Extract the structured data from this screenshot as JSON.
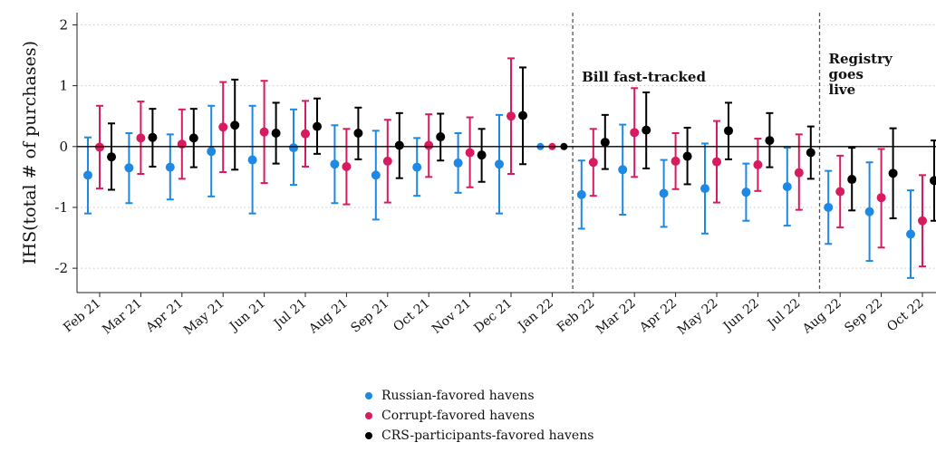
{
  "chart_data": {
    "type": "scatter",
    "ylabel": "IHS(total # of purchases)",
    "ylim": [
      -2.4,
      2.2
    ],
    "yticks": [
      -2,
      -1,
      0,
      1,
      2
    ],
    "yticklabels": [
      "-2",
      "-1",
      "0",
      "1",
      "2"
    ],
    "grid": true,
    "categories": [
      "Feb 21",
      "Mar 21",
      "Apr 21",
      "May 21",
      "Jun 21",
      "Jul 21",
      "Aug 21",
      "Sep 21",
      "Oct 21",
      "Nov 21",
      "Dec 21",
      "Jan 22",
      "Feb 22",
      "Mar 22",
      "Apr 22",
      "May 22",
      "Jun 22",
      "Jul 22",
      "Aug 22",
      "Sep 22",
      "Oct 22"
    ],
    "series": [
      {
        "name": "Russian-favored havens",
        "color": "#1e88e5",
        "values": [
          -0.47,
          -0.35,
          -0.34,
          -0.08,
          -0.22,
          -0.02,
          -0.29,
          -0.47,
          -0.34,
          -0.27,
          -0.29,
          0,
          -0.79,
          -0.38,
          -0.77,
          -0.69,
          -0.75,
          -0.66,
          -1.0,
          -1.07,
          -1.44
        ],
        "lower": [
          -1.1,
          -0.93,
          -0.87,
          -0.82,
          -1.1,
          -0.63,
          -0.93,
          -1.2,
          -0.81,
          -0.76,
          -1.1,
          0,
          -1.35,
          -1.12,
          -1.32,
          -1.43,
          -1.22,
          -1.3,
          -1.6,
          -1.88,
          -2.16
        ],
        "upper": [
          0.15,
          0.22,
          0.2,
          0.67,
          0.67,
          0.61,
          0.35,
          0.26,
          0.14,
          0.22,
          0.52,
          0,
          -0.23,
          0.36,
          -0.22,
          0.05,
          -0.28,
          -0.02,
          -0.4,
          -0.26,
          -0.72
        ]
      },
      {
        "name": "Corrupt-favored havens",
        "color": "#d81b60",
        "values": [
          -0.01,
          0.14,
          0.04,
          0.32,
          0.24,
          0.21,
          -0.33,
          -0.24,
          0.02,
          -0.1,
          0.5,
          0,
          -0.26,
          0.23,
          -0.24,
          -0.25,
          -0.3,
          -0.43,
          -0.74,
          -0.84,
          -1.22
        ],
        "lower": [
          -0.69,
          -0.45,
          -0.53,
          -0.42,
          -0.6,
          -0.33,
          -0.95,
          -0.92,
          -0.5,
          -0.67,
          -0.45,
          0,
          -0.81,
          -0.5,
          -0.7,
          -0.92,
          -0.73,
          -1.04,
          -1.33,
          -1.66,
          -1.97
        ],
        "upper": [
          0.67,
          0.74,
          0.61,
          1.06,
          1.08,
          0.75,
          0.29,
          0.44,
          0.53,
          0.48,
          1.45,
          0,
          0.29,
          0.96,
          0.22,
          0.42,
          0.13,
          0.2,
          -0.15,
          -0.04,
          -0.47
        ]
      },
      {
        "name": "CRS-participants-favored havens",
        "color": "#000000",
        "values": [
          -0.17,
          0.15,
          0.14,
          0.35,
          0.22,
          0.33,
          0.22,
          0.02,
          0.16,
          -0.14,
          0.51,
          0,
          0.07,
          0.27,
          -0.16,
          0.26,
          0.1,
          -0.1,
          -0.54,
          -0.44,
          -0.56
        ],
        "lower": [
          -0.71,
          -0.33,
          -0.34,
          -0.38,
          -0.28,
          -0.12,
          -0.21,
          -0.52,
          -0.23,
          -0.58,
          -0.29,
          0,
          -0.37,
          -0.36,
          -0.62,
          -0.21,
          -0.34,
          -0.53,
          -1.05,
          -1.18,
          -1.22
        ],
        "upper": [
          0.38,
          0.62,
          0.62,
          1.1,
          0.72,
          0.79,
          0.64,
          0.55,
          0.54,
          0.29,
          1.3,
          0,
          0.52,
          0.89,
          0.31,
          0.72,
          0.55,
          0.33,
          -0.02,
          0.3,
          0.1
        ]
      }
    ],
    "annotations": [
      {
        "text": "Bill fast-tracked",
        "after_category": "Jan 22"
      },
      {
        "text_lines": [
          "Registry",
          "goes",
          "live"
        ],
        "after_category": "Jul 22"
      }
    ],
    "legend_position": "bottom"
  }
}
